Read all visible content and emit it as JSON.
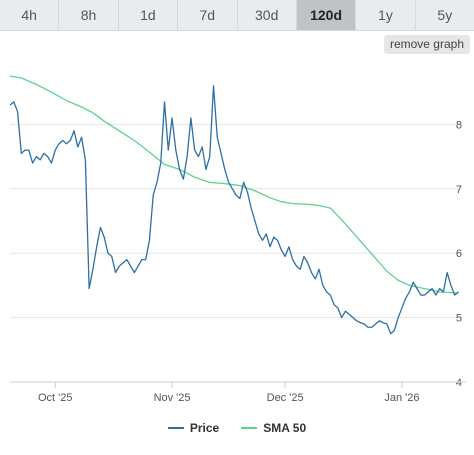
{
  "tabs": [
    {
      "label": "4h"
    },
    {
      "label": "8h"
    },
    {
      "label": "1d"
    },
    {
      "label": "7d"
    },
    {
      "label": "30d"
    },
    {
      "label": "120d",
      "active": true
    },
    {
      "label": "1y"
    },
    {
      "label": "5y"
    }
  ],
  "remove_graph_label": "remove graph",
  "chart_data": {
    "type": "line",
    "title": "",
    "xlabel": "",
    "ylabel": "",
    "ylim": [
      4,
      9
    ],
    "y_ticks": [
      4,
      5,
      6,
      7,
      8
    ],
    "x_ticks": [
      {
        "label": "Oct '25",
        "date": "2025-10-01"
      },
      {
        "label": "Nov '25",
        "date": "2025-11-01"
      },
      {
        "label": "Dec '25",
        "date": "2025-12-01"
      },
      {
        "label": "Jan '26",
        "date": "2026-01-01"
      }
    ],
    "x_range": [
      "2025-09-19",
      "2026-01-18"
    ],
    "grid": "horizontal",
    "legend_position": "bottom",
    "series": [
      {
        "name": "Price",
        "color": "#2f6fa3",
        "points": [
          [
            "2025-09-19",
            8.3
          ],
          [
            "2025-09-20",
            8.35
          ],
          [
            "2025-09-21",
            8.2
          ],
          [
            "2025-09-22",
            7.55
          ],
          [
            "2025-09-23",
            7.6
          ],
          [
            "2025-09-24",
            7.6
          ],
          [
            "2025-09-25",
            7.4
          ],
          [
            "2025-09-26",
            7.5
          ],
          [
            "2025-09-27",
            7.45
          ],
          [
            "2025-09-28",
            7.55
          ],
          [
            "2025-09-29",
            7.5
          ],
          [
            "2025-09-30",
            7.4
          ],
          [
            "2025-10-01",
            7.6
          ],
          [
            "2025-10-02",
            7.7
          ],
          [
            "2025-10-03",
            7.75
          ],
          [
            "2025-10-04",
            7.7
          ],
          [
            "2025-10-05",
            7.75
          ],
          [
            "2025-10-06",
            7.9
          ],
          [
            "2025-10-07",
            7.65
          ],
          [
            "2025-10-08",
            7.8
          ],
          [
            "2025-10-09",
            7.45
          ],
          [
            "2025-10-10",
            5.45
          ],
          [
            "2025-10-11",
            5.75
          ],
          [
            "2025-10-12",
            6.1
          ],
          [
            "2025-10-13",
            6.4
          ],
          [
            "2025-10-14",
            6.25
          ],
          [
            "2025-10-15",
            6.0
          ],
          [
            "2025-10-16",
            5.95
          ],
          [
            "2025-10-17",
            5.7
          ],
          [
            "2025-10-18",
            5.8
          ],
          [
            "2025-10-19",
            5.85
          ],
          [
            "2025-10-20",
            5.9
          ],
          [
            "2025-10-21",
            5.8
          ],
          [
            "2025-10-22",
            5.7
          ],
          [
            "2025-10-23",
            5.8
          ],
          [
            "2025-10-24",
            5.9
          ],
          [
            "2025-10-25",
            5.9
          ],
          [
            "2025-10-26",
            6.2
          ],
          [
            "2025-10-27",
            6.9
          ],
          [
            "2025-10-28",
            7.1
          ],
          [
            "2025-10-29",
            7.4
          ],
          [
            "2025-10-30",
            8.35
          ],
          [
            "2025-10-31",
            7.6
          ],
          [
            "2025-11-01",
            8.1
          ],
          [
            "2025-11-02",
            7.6
          ],
          [
            "2025-11-03",
            7.3
          ],
          [
            "2025-11-04",
            7.15
          ],
          [
            "2025-11-05",
            7.5
          ],
          [
            "2025-11-06",
            8.1
          ],
          [
            "2025-11-07",
            7.6
          ],
          [
            "2025-11-08",
            7.5
          ],
          [
            "2025-11-09",
            7.65
          ],
          [
            "2025-11-10",
            7.3
          ],
          [
            "2025-11-11",
            7.5
          ],
          [
            "2025-11-12",
            8.6
          ],
          [
            "2025-11-13",
            7.8
          ],
          [
            "2025-11-14",
            7.55
          ],
          [
            "2025-11-15",
            7.3
          ],
          [
            "2025-11-16",
            7.1
          ],
          [
            "2025-11-17",
            7.0
          ],
          [
            "2025-11-18",
            6.9
          ],
          [
            "2025-11-19",
            6.85
          ],
          [
            "2025-11-20",
            7.1
          ],
          [
            "2025-11-21",
            6.95
          ],
          [
            "2025-11-22",
            6.7
          ],
          [
            "2025-11-23",
            6.5
          ],
          [
            "2025-11-24",
            6.3
          ],
          [
            "2025-11-25",
            6.2
          ],
          [
            "2025-11-26",
            6.3
          ],
          [
            "2025-11-27",
            6.1
          ],
          [
            "2025-11-28",
            6.25
          ],
          [
            "2025-11-29",
            6.2
          ],
          [
            "2025-11-30",
            6.05
          ],
          [
            "2025-12-01",
            5.95
          ],
          [
            "2025-12-02",
            6.1
          ],
          [
            "2025-12-03",
            5.9
          ],
          [
            "2025-12-04",
            5.8
          ],
          [
            "2025-12-05",
            5.75
          ],
          [
            "2025-12-06",
            5.95
          ],
          [
            "2025-12-07",
            5.85
          ],
          [
            "2025-12-08",
            5.7
          ],
          [
            "2025-12-09",
            5.6
          ],
          [
            "2025-12-10",
            5.75
          ],
          [
            "2025-12-11",
            5.5
          ],
          [
            "2025-12-12",
            5.4
          ],
          [
            "2025-12-13",
            5.35
          ],
          [
            "2025-12-14",
            5.2
          ],
          [
            "2025-12-15",
            5.15
          ],
          [
            "2025-12-16",
            5.0
          ],
          [
            "2025-12-17",
            5.1
          ],
          [
            "2025-12-18",
            5.05
          ],
          [
            "2025-12-19",
            5.0
          ],
          [
            "2025-12-20",
            4.95
          ],
          [
            "2025-12-21",
            4.92
          ],
          [
            "2025-12-22",
            4.9
          ],
          [
            "2025-12-23",
            4.85
          ],
          [
            "2025-12-24",
            4.85
          ],
          [
            "2025-12-25",
            4.9
          ],
          [
            "2025-12-26",
            4.95
          ],
          [
            "2025-12-27",
            4.92
          ],
          [
            "2025-12-28",
            4.9
          ],
          [
            "2025-12-29",
            4.75
          ],
          [
            "2025-12-30",
            4.8
          ],
          [
            "2025-12-31",
            5.0
          ],
          [
            "2026-01-01",
            5.15
          ],
          [
            "2026-01-02",
            5.3
          ],
          [
            "2026-01-03",
            5.4
          ],
          [
            "2026-01-04",
            5.55
          ],
          [
            "2026-01-05",
            5.45
          ],
          [
            "2026-01-06",
            5.35
          ],
          [
            "2026-01-07",
            5.35
          ],
          [
            "2026-01-08",
            5.4
          ],
          [
            "2026-01-09",
            5.45
          ],
          [
            "2026-01-10",
            5.35
          ],
          [
            "2026-01-11",
            5.45
          ],
          [
            "2026-01-12",
            5.4
          ],
          [
            "2026-01-13",
            5.7
          ],
          [
            "2026-01-14",
            5.5
          ],
          [
            "2026-01-15",
            5.35
          ],
          [
            "2026-01-16",
            5.4
          ]
        ]
      },
      {
        "name": "SMA 50",
        "color": "#5fd18d",
        "points": [
          [
            "2025-09-19",
            8.75
          ],
          [
            "2025-09-22",
            8.72
          ],
          [
            "2025-09-26",
            8.62
          ],
          [
            "2025-09-30",
            8.5
          ],
          [
            "2025-10-04",
            8.37
          ],
          [
            "2025-10-08",
            8.27
          ],
          [
            "2025-10-11",
            8.18
          ],
          [
            "2025-10-14",
            8.05
          ],
          [
            "2025-10-18",
            7.9
          ],
          [
            "2025-10-22",
            7.75
          ],
          [
            "2025-10-26",
            7.57
          ],
          [
            "2025-10-30",
            7.38
          ],
          [
            "2025-11-03",
            7.3
          ],
          [
            "2025-11-07",
            7.18
          ],
          [
            "2025-11-11",
            7.1
          ],
          [
            "2025-11-15",
            7.08
          ],
          [
            "2025-11-19",
            7.05
          ],
          [
            "2025-11-23",
            6.97
          ],
          [
            "2025-11-27",
            6.86
          ],
          [
            "2025-11-30",
            6.8
          ],
          [
            "2025-12-03",
            6.77
          ],
          [
            "2025-12-07",
            6.76
          ],
          [
            "2025-12-10",
            6.74
          ],
          [
            "2025-12-13",
            6.7
          ],
          [
            "2025-12-16",
            6.52
          ],
          [
            "2025-12-19",
            6.32
          ],
          [
            "2025-12-22",
            6.12
          ],
          [
            "2025-12-25",
            5.92
          ],
          [
            "2025-12-28",
            5.72
          ],
          [
            "2025-12-31",
            5.58
          ],
          [
            "2026-01-03",
            5.5
          ],
          [
            "2026-01-07",
            5.45
          ],
          [
            "2026-01-11",
            5.4
          ],
          [
            "2026-01-16",
            5.38
          ]
        ]
      }
    ]
  }
}
